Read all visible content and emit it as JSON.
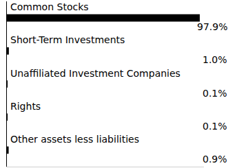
{
  "chart_data": {
    "type": "bar",
    "orientation": "horizontal",
    "categories": [
      "Common Stocks",
      "Short-Term Investments",
      "Unaffiliated Investment Companies",
      "Rights",
      "Other assets less liabilities"
    ],
    "values": [
      97.9,
      1.0,
      0.1,
      0.1,
      0.9
    ],
    "value_labels": [
      "97.9%",
      "1.0%",
      "0.1%",
      "0.1%",
      "0.9%"
    ],
    "color": "#000000",
    "xlim": [
      0,
      100
    ],
    "grid": false,
    "tick_labels": false,
    "data_labels": true
  }
}
